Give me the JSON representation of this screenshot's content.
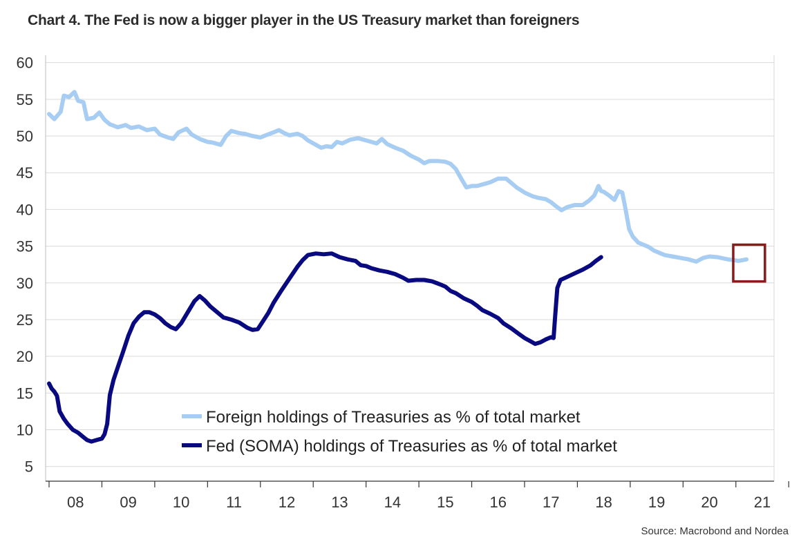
{
  "title": "Chart 4. The Fed is now a bigger player in the US Treasury market than foreigners",
  "source": "Source: Macrobond and Nordea",
  "chart_data": {
    "type": "line",
    "ylim": [
      3,
      61
    ],
    "xlim": [
      2007.5,
      2021.0
    ],
    "yticks": [
      5,
      10,
      15,
      20,
      25,
      30,
      35,
      40,
      45,
      50,
      55,
      60
    ],
    "xticks": [
      {
        "label": "08",
        "value": 2008.0
      },
      {
        "label": "09",
        "value": 2009.0
      },
      {
        "label": "10",
        "value": 2010.0
      },
      {
        "label": "11",
        "value": 2011.0
      },
      {
        "label": "12",
        "value": 2012.0
      },
      {
        "label": "13",
        "value": 2013.0
      },
      {
        "label": "14",
        "value": 2014.0
      },
      {
        "label": "15",
        "value": 2015.0
      },
      {
        "label": "16",
        "value": 2016.0
      },
      {
        "label": "17",
        "value": 2017.0
      },
      {
        "label": "18",
        "value": 2018.0
      },
      {
        "label": "19",
        "value": 2019.0
      },
      {
        "label": "20",
        "value": 2020.0
      },
      {
        "label": "21",
        "value": 2021.0
      }
    ],
    "grid": true,
    "legend_position": "bottom-center",
    "highlight_box": {
      "x": [
        2020.45,
        2021.05
      ],
      "y": [
        30.2,
        35.2
      ],
      "color": "#8b1a1a"
    },
    "series": [
      {
        "name": "Foreign holdings of Treasuries as % of total market",
        "color": "#a8cdf2",
        "points": [
          [
            2007.5,
            53
          ],
          [
            2007.6,
            52.3
          ],
          [
            2007.72,
            53.3
          ],
          [
            2007.78,
            55.5
          ],
          [
            2007.88,
            55.3
          ],
          [
            2007.98,
            56
          ],
          [
            2008.05,
            54.8
          ],
          [
            2008.15,
            54.6
          ],
          [
            2008.22,
            52.3
          ],
          [
            2008.35,
            52.5
          ],
          [
            2008.45,
            53.2
          ],
          [
            2008.55,
            52.2
          ],
          [
            2008.65,
            51.6
          ],
          [
            2008.8,
            51.2
          ],
          [
            2008.95,
            51.5
          ],
          [
            2009.05,
            51.1
          ],
          [
            2009.2,
            51.3
          ],
          [
            2009.35,
            50.8
          ],
          [
            2009.5,
            51
          ],
          [
            2009.6,
            50.2
          ],
          [
            2009.75,
            49.8
          ],
          [
            2009.85,
            49.6
          ],
          [
            2009.95,
            50.5
          ],
          [
            2010.1,
            51
          ],
          [
            2010.2,
            50.2
          ],
          [
            2010.35,
            49.6
          ],
          [
            2010.5,
            49.2
          ],
          [
            2010.6,
            49.1
          ],
          [
            2010.75,
            48.8
          ],
          [
            2010.85,
            50
          ],
          [
            2010.95,
            50.7
          ],
          [
            2011.1,
            50.4
          ],
          [
            2011.2,
            50.3
          ],
          [
            2011.35,
            50
          ],
          [
            2011.5,
            49.8
          ],
          [
            2011.6,
            50.1
          ],
          [
            2011.75,
            50.5
          ],
          [
            2011.85,
            50.8
          ],
          [
            2011.95,
            50.4
          ],
          [
            2012.05,
            50.1
          ],
          [
            2012.2,
            50.3
          ],
          [
            2012.3,
            50
          ],
          [
            2012.4,
            49.4
          ],
          [
            2012.55,
            48.8
          ],
          [
            2012.65,
            48.4
          ],
          [
            2012.75,
            48.6
          ],
          [
            2012.85,
            48.5
          ],
          [
            2012.95,
            49.2
          ],
          [
            2013.05,
            49
          ],
          [
            2013.2,
            49.5
          ],
          [
            2013.35,
            49.7
          ],
          [
            2013.5,
            49.4
          ],
          [
            2013.6,
            49.2
          ],
          [
            2013.7,
            49
          ],
          [
            2013.8,
            49.6
          ],
          [
            2013.9,
            48.9
          ],
          [
            2014.05,
            48.4
          ],
          [
            2014.2,
            48
          ],
          [
            2014.35,
            47.3
          ],
          [
            2014.5,
            46.8
          ],
          [
            2014.6,
            46.3
          ],
          [
            2014.7,
            46.6
          ],
          [
            2014.85,
            46.6
          ],
          [
            2015.0,
            46.5
          ],
          [
            2015.1,
            46.2
          ],
          [
            2015.2,
            45.5
          ],
          [
            2015.3,
            44.2
          ],
          [
            2015.4,
            43
          ],
          [
            2015.5,
            43.2
          ],
          [
            2015.6,
            43.2
          ],
          [
            2015.75,
            43.5
          ],
          [
            2015.85,
            43.7
          ],
          [
            2016.0,
            44.2
          ],
          [
            2016.15,
            44.2
          ],
          [
            2016.25,
            43.6
          ],
          [
            2016.35,
            43
          ],
          [
            2016.5,
            42.3
          ],
          [
            2016.65,
            41.8
          ],
          [
            2016.75,
            41.6
          ],
          [
            2016.9,
            41.4
          ],
          [
            2017.0,
            41
          ],
          [
            2017.1,
            40.4
          ],
          [
            2017.2,
            39.9
          ],
          [
            2017.3,
            40.3
          ],
          [
            2017.45,
            40.6
          ],
          [
            2017.6,
            40.6
          ],
          [
            2017.72,
            41.2
          ],
          [
            2017.82,
            41.9
          ],
          [
            2017.9,
            43.2
          ],
          [
            2017.95,
            42.5
          ],
          [
            2018.0,
            42.4
          ],
          [
            2018.1,
            41.9
          ],
          [
            2018.2,
            41.3
          ],
          [
            2018.28,
            42.5
          ],
          [
            2018.35,
            42.3
          ],
          [
            2018.4,
            40.5
          ],
          [
            2018.45,
            38.5
          ],
          [
            2018.48,
            37.3
          ],
          [
            2018.55,
            36.3
          ],
          [
            2018.65,
            35.5
          ],
          [
            2018.75,
            35.2
          ],
          [
            2018.85,
            34.9
          ],
          [
            2018.95,
            34.4
          ],
          [
            2019.05,
            34.1
          ],
          [
            2019.15,
            33.8
          ],
          [
            2019.3,
            33.6
          ],
          [
            2019.45,
            33.4
          ],
          [
            2019.6,
            33.2
          ],
          [
            2019.75,
            32.9
          ],
          [
            2019.88,
            33.4
          ],
          [
            2020.0,
            33.6
          ],
          [
            2020.15,
            33.5
          ],
          [
            2020.35,
            33.2
          ],
          [
            2020.55,
            33.0
          ],
          [
            2020.7,
            33.2
          ]
        ]
      },
      {
        "name": "Fed (SOMA) holdings of Treasuries as % of total market",
        "color": "#0a0a80",
        "points": [
          [
            2007.5,
            16.3
          ],
          [
            2007.55,
            15.6
          ],
          [
            2007.6,
            15.2
          ],
          [
            2007.65,
            14.6
          ],
          [
            2007.7,
            12.5
          ],
          [
            2007.78,
            11.5
          ],
          [
            2007.85,
            10.8
          ],
          [
            2007.95,
            10
          ],
          [
            2008.05,
            9.6
          ],
          [
            2008.15,
            9
          ],
          [
            2008.22,
            8.6
          ],
          [
            2008.3,
            8.4
          ],
          [
            2008.4,
            8.6
          ],
          [
            2008.5,
            8.8
          ],
          [
            2008.55,
            9.4
          ],
          [
            2008.6,
            10.8
          ],
          [
            2008.65,
            14.7
          ],
          [
            2008.72,
            16.8
          ],
          [
            2008.8,
            18.5
          ],
          [
            2008.9,
            20.6
          ],
          [
            2009.0,
            22.8
          ],
          [
            2009.1,
            24.5
          ],
          [
            2009.2,
            25.4
          ],
          [
            2009.3,
            26
          ],
          [
            2009.4,
            26
          ],
          [
            2009.5,
            25.7
          ],
          [
            2009.6,
            25.2
          ],
          [
            2009.7,
            24.5
          ],
          [
            2009.8,
            24
          ],
          [
            2009.9,
            23.7
          ],
          [
            2010.0,
            24.5
          ],
          [
            2010.15,
            26.3
          ],
          [
            2010.25,
            27.5
          ],
          [
            2010.35,
            28.2
          ],
          [
            2010.45,
            27.6
          ],
          [
            2010.55,
            26.8
          ],
          [
            2010.65,
            26.2
          ],
          [
            2010.8,
            25.3
          ],
          [
            2010.95,
            25
          ],
          [
            2011.1,
            24.6
          ],
          [
            2011.25,
            23.9
          ],
          [
            2011.35,
            23.6
          ],
          [
            2011.45,
            23.7
          ],
          [
            2011.55,
            24.8
          ],
          [
            2011.65,
            25.9
          ],
          [
            2011.75,
            27.3
          ],
          [
            2011.9,
            29
          ],
          [
            2012.05,
            30.6
          ],
          [
            2012.2,
            32.2
          ],
          [
            2012.3,
            33.1
          ],
          [
            2012.4,
            33.8
          ],
          [
            2012.55,
            34
          ],
          [
            2012.7,
            33.9
          ],
          [
            2012.85,
            34
          ],
          [
            2013.0,
            33.5
          ],
          [
            2013.15,
            33.2
          ],
          [
            2013.3,
            33
          ],
          [
            2013.4,
            32.4
          ],
          [
            2013.5,
            32.3
          ],
          [
            2013.6,
            32
          ],
          [
            2013.75,
            31.7
          ],
          [
            2013.9,
            31.5
          ],
          [
            2014.05,
            31.2
          ],
          [
            2014.2,
            30.7
          ],
          [
            2014.3,
            30.3
          ],
          [
            2014.45,
            30.4
          ],
          [
            2014.6,
            30.4
          ],
          [
            2014.75,
            30.2
          ],
          [
            2014.9,
            29.8
          ],
          [
            2015.0,
            29.5
          ],
          [
            2015.1,
            28.9
          ],
          [
            2015.2,
            28.6
          ],
          [
            2015.35,
            27.9
          ],
          [
            2015.5,
            27.4
          ],
          [
            2015.6,
            26.9
          ],
          [
            2015.7,
            26.3
          ],
          [
            2015.85,
            25.8
          ],
          [
            2016.0,
            25.2
          ],
          [
            2016.1,
            24.5
          ],
          [
            2016.25,
            23.8
          ],
          [
            2016.4,
            23
          ],
          [
            2016.5,
            22.5
          ],
          [
            2016.6,
            22.1
          ],
          [
            2016.7,
            21.7
          ],
          [
            2016.8,
            21.9
          ],
          [
            2016.9,
            22.3
          ],
          [
            2017.0,
            22.6
          ],
          [
            2017.05,
            22.5
          ],
          [
            2017.08,
            25.5
          ],
          [
            2017.12,
            29.3
          ],
          [
            2017.18,
            30.4
          ],
          [
            2017.3,
            30.8
          ],
          [
            2017.45,
            31.3
          ],
          [
            2017.6,
            31.8
          ],
          [
            2017.75,
            32.4
          ],
          [
            2017.85,
            33
          ],
          [
            2017.95,
            33.5
          ]
        ]
      }
    ]
  }
}
